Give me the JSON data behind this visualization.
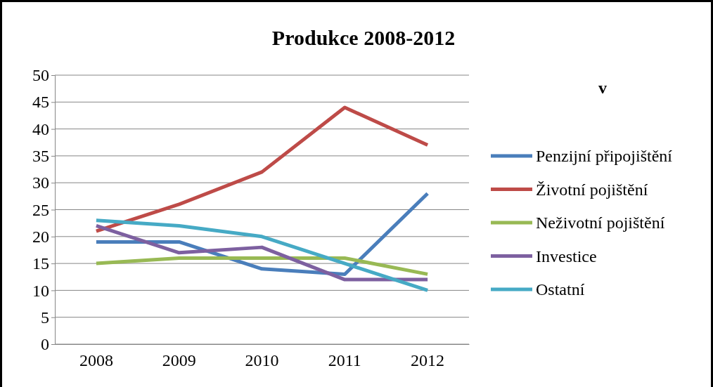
{
  "chart_data": {
    "type": "line",
    "title": "Produkce 2008-2012",
    "legend_title": "v",
    "categories": [
      "2008",
      "2009",
      "2010",
      "2011",
      "2012"
    ],
    "series": [
      {
        "name": "Penzijní připojištění",
        "color": "#4a7ebb",
        "values": [
          19,
          19,
          14,
          13,
          28
        ]
      },
      {
        "name": "Životní pojištění",
        "color": "#be4b48",
        "values": [
          21,
          26,
          32,
          44,
          37
        ]
      },
      {
        "name": "Neživotní pojištění",
        "color": "#98b954",
        "values": [
          15,
          16,
          16,
          16,
          13
        ]
      },
      {
        "name": "Investice",
        "color": "#7d60a0",
        "values": [
          22,
          17,
          18,
          12,
          12
        ]
      },
      {
        "name": "Ostatní",
        "color": "#46aac5",
        "values": [
          23,
          22,
          20,
          15,
          10
        ]
      }
    ],
    "ylim": [
      0,
      50
    ],
    "yticks": [
      0,
      5,
      10,
      15,
      20,
      25,
      30,
      35,
      40,
      45,
      50
    ],
    "grid": "y",
    "legend": "right",
    "marker": "none",
    "line_style": "solid"
  }
}
